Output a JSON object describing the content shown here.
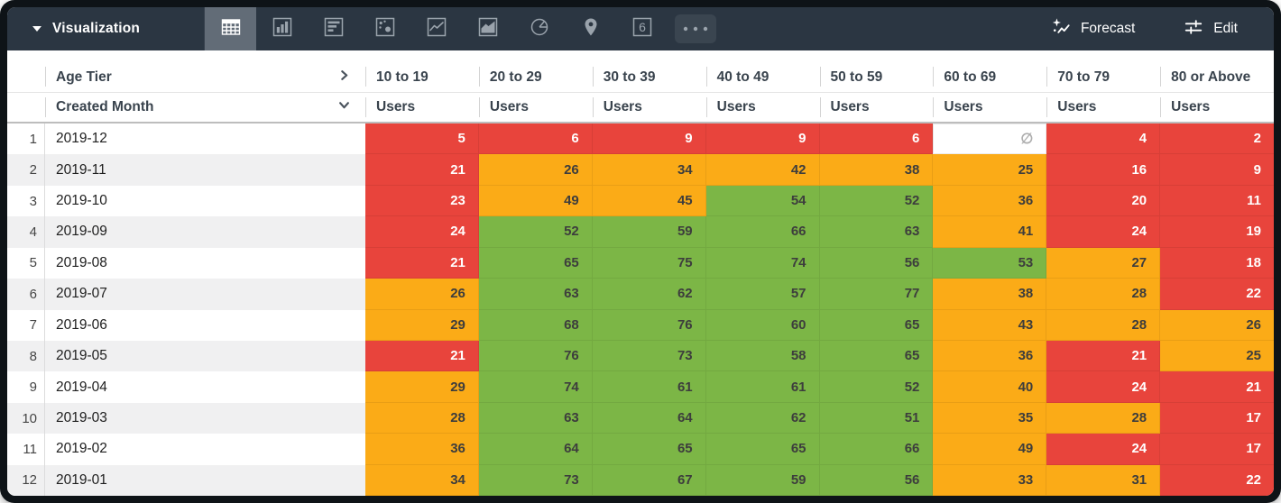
{
  "toolbar": {
    "title": "Visualization",
    "forecast_label": "Forecast",
    "edit_label": "Edit",
    "vis_types": [
      {
        "name": "table",
        "selected": true
      },
      {
        "name": "column-chart",
        "selected": false
      },
      {
        "name": "bar-chart",
        "selected": false
      },
      {
        "name": "scatter",
        "selected": false
      },
      {
        "name": "line-chart",
        "selected": false
      },
      {
        "name": "area-chart",
        "selected": false
      },
      {
        "name": "pie-chart",
        "selected": false
      },
      {
        "name": "map",
        "selected": false
      },
      {
        "name": "single-value",
        "selected": false
      },
      {
        "name": "more",
        "selected": false
      }
    ]
  },
  "table": {
    "pivot_field_label": "Age Tier",
    "row_field_label": "Created Month",
    "measure_label": "Users",
    "null_symbol": "∅",
    "columns": [
      "10 to 19",
      "20 to 29",
      "30 to 39",
      "40 to 49",
      "50 to 59",
      "60 to 69",
      "70 to 79",
      "80 or Above"
    ],
    "rows": [
      {
        "n": "1",
        "month": "2019-12",
        "cells": [
          {
            "v": "5",
            "c": "red"
          },
          {
            "v": "6",
            "c": "red"
          },
          {
            "v": "9",
            "c": "red"
          },
          {
            "v": "9",
            "c": "red"
          },
          {
            "v": "6",
            "c": "red"
          },
          {
            "v": null,
            "c": "null"
          },
          {
            "v": "4",
            "c": "red"
          },
          {
            "v": "2",
            "c": "red"
          }
        ]
      },
      {
        "n": "2",
        "month": "2019-11",
        "cells": [
          {
            "v": "21",
            "c": "red"
          },
          {
            "v": "26",
            "c": "orange"
          },
          {
            "v": "34",
            "c": "orange"
          },
          {
            "v": "42",
            "c": "orange"
          },
          {
            "v": "38",
            "c": "orange"
          },
          {
            "v": "25",
            "c": "orange"
          },
          {
            "v": "16",
            "c": "red"
          },
          {
            "v": "9",
            "c": "red"
          }
        ]
      },
      {
        "n": "3",
        "month": "2019-10",
        "cells": [
          {
            "v": "23",
            "c": "red"
          },
          {
            "v": "49",
            "c": "orange"
          },
          {
            "v": "45",
            "c": "orange"
          },
          {
            "v": "54",
            "c": "green"
          },
          {
            "v": "52",
            "c": "green"
          },
          {
            "v": "36",
            "c": "orange"
          },
          {
            "v": "20",
            "c": "red"
          },
          {
            "v": "11",
            "c": "red"
          }
        ]
      },
      {
        "n": "4",
        "month": "2019-09",
        "cells": [
          {
            "v": "24",
            "c": "red"
          },
          {
            "v": "52",
            "c": "green"
          },
          {
            "v": "59",
            "c": "green"
          },
          {
            "v": "66",
            "c": "green"
          },
          {
            "v": "63",
            "c": "green"
          },
          {
            "v": "41",
            "c": "orange"
          },
          {
            "v": "24",
            "c": "red"
          },
          {
            "v": "19",
            "c": "red"
          }
        ]
      },
      {
        "n": "5",
        "month": "2019-08",
        "cells": [
          {
            "v": "21",
            "c": "red"
          },
          {
            "v": "65",
            "c": "green"
          },
          {
            "v": "75",
            "c": "green"
          },
          {
            "v": "74",
            "c": "green"
          },
          {
            "v": "56",
            "c": "green"
          },
          {
            "v": "53",
            "c": "green"
          },
          {
            "v": "27",
            "c": "orange"
          },
          {
            "v": "18",
            "c": "red"
          }
        ]
      },
      {
        "n": "6",
        "month": "2019-07",
        "cells": [
          {
            "v": "26",
            "c": "orange"
          },
          {
            "v": "63",
            "c": "green"
          },
          {
            "v": "62",
            "c": "green"
          },
          {
            "v": "57",
            "c": "green"
          },
          {
            "v": "77",
            "c": "green"
          },
          {
            "v": "38",
            "c": "orange"
          },
          {
            "v": "28",
            "c": "orange"
          },
          {
            "v": "22",
            "c": "red"
          }
        ]
      },
      {
        "n": "7",
        "month": "2019-06",
        "cells": [
          {
            "v": "29",
            "c": "orange"
          },
          {
            "v": "68",
            "c": "green"
          },
          {
            "v": "76",
            "c": "green"
          },
          {
            "v": "60",
            "c": "green"
          },
          {
            "v": "65",
            "c": "green"
          },
          {
            "v": "43",
            "c": "orange"
          },
          {
            "v": "28",
            "c": "orange"
          },
          {
            "v": "26",
            "c": "orange"
          }
        ]
      },
      {
        "n": "8",
        "month": "2019-05",
        "cells": [
          {
            "v": "21",
            "c": "red"
          },
          {
            "v": "76",
            "c": "green"
          },
          {
            "v": "73",
            "c": "green"
          },
          {
            "v": "58",
            "c": "green"
          },
          {
            "v": "65",
            "c": "green"
          },
          {
            "v": "36",
            "c": "orange"
          },
          {
            "v": "21",
            "c": "red"
          },
          {
            "v": "25",
            "c": "orange"
          }
        ]
      },
      {
        "n": "9",
        "month": "2019-04",
        "cells": [
          {
            "v": "29",
            "c": "orange"
          },
          {
            "v": "74",
            "c": "green"
          },
          {
            "v": "61",
            "c": "green"
          },
          {
            "v": "61",
            "c": "green"
          },
          {
            "v": "52",
            "c": "green"
          },
          {
            "v": "40",
            "c": "orange"
          },
          {
            "v": "24",
            "c": "red"
          },
          {
            "v": "21",
            "c": "red"
          }
        ]
      },
      {
        "n": "10",
        "month": "2019-03",
        "cells": [
          {
            "v": "28",
            "c": "orange"
          },
          {
            "v": "63",
            "c": "green"
          },
          {
            "v": "64",
            "c": "green"
          },
          {
            "v": "62",
            "c": "green"
          },
          {
            "v": "51",
            "c": "green"
          },
          {
            "v": "35",
            "c": "orange"
          },
          {
            "v": "28",
            "c": "orange"
          },
          {
            "v": "17",
            "c": "red"
          }
        ]
      },
      {
        "n": "11",
        "month": "2019-02",
        "cells": [
          {
            "v": "36",
            "c": "orange"
          },
          {
            "v": "64",
            "c": "green"
          },
          {
            "v": "65",
            "c": "green"
          },
          {
            "v": "65",
            "c": "green"
          },
          {
            "v": "66",
            "c": "green"
          },
          {
            "v": "49",
            "c": "orange"
          },
          {
            "v": "24",
            "c": "red"
          },
          {
            "v": "17",
            "c": "red"
          }
        ]
      },
      {
        "n": "12",
        "month": "2019-01",
        "cells": [
          {
            "v": "34",
            "c": "orange"
          },
          {
            "v": "73",
            "c": "green"
          },
          {
            "v": "67",
            "c": "green"
          },
          {
            "v": "59",
            "c": "green"
          },
          {
            "v": "56",
            "c": "green"
          },
          {
            "v": "33",
            "c": "orange"
          },
          {
            "v": "31",
            "c": "orange"
          },
          {
            "v": "22",
            "c": "red"
          }
        ]
      }
    ]
  },
  "colors": {
    "red": "#E8443C",
    "orange": "#FBAB17",
    "green": "#7CB646",
    "toolbar_bg": "#2B3642",
    "selected_tile": "#626C77",
    "icon_gray": "#9AA3AC"
  }
}
